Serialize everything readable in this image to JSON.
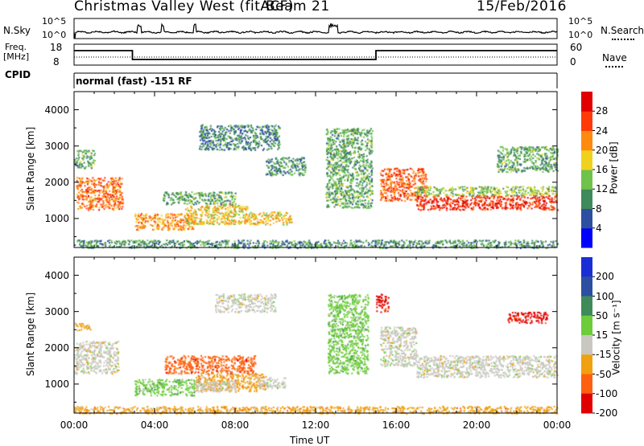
{
  "header": {
    "station": "Christmas Valley West (fitACF)",
    "beam": "Beam 21",
    "date": "15/Feb/2016"
  },
  "top_panels": {
    "noise": {
      "left_label": "N.Sky",
      "right_label": "N.Search",
      "left_ticks": [
        "10^5",
        "10^0"
      ],
      "right_ticks": [
        "10^5",
        "10^0"
      ]
    },
    "freq": {
      "left_label_1": "Freq.",
      "left_label_2": "[MHz]",
      "left_ticks": [
        "18",
        "8"
      ],
      "right_label": "Nave",
      "right_ticks": [
        "60",
        "0"
      ]
    },
    "cpid": {
      "label": "CPID",
      "value": "normal (fast) -151 RF"
    }
  },
  "chart_data": [
    {
      "type": "heatmap",
      "name": "power",
      "ylabel": "Slant Range [km]",
      "yticks": [
        1000,
        2000,
        3000,
        4000
      ],
      "ylim": [
        200,
        4500
      ],
      "xlabel": "Time UT",
      "xticks": [
        "00:00",
        "04:00",
        "08:00",
        "12:00",
        "16:00",
        "20:00",
        "00:00"
      ],
      "xlim_hours": [
        0,
        24
      ],
      "colorbar": {
        "label": "Power [dB]",
        "ticks": [
          "4",
          "8",
          "12",
          "16",
          "20",
          "24",
          "28"
        ],
        "colors": [
          "#0000ff",
          "#2d4ea1",
          "#3f8a5a",
          "#6fc24a",
          "#f0d21e",
          "#ff8a10",
          "#ff3a0a",
          "#e00000"
        ]
      },
      "regions": [
        {
          "t0": 0.1,
          "t1": 2.4,
          "r0": 1250,
          "r1": 2150,
          "level": 0.78
        },
        {
          "t0": 0.0,
          "t1": 1.0,
          "r0": 2400,
          "r1": 2900,
          "level": 0.35
        },
        {
          "t0": 3.0,
          "t1": 6.0,
          "r0": 700,
          "r1": 1150,
          "level": 0.7
        },
        {
          "t0": 5.5,
          "t1": 8.6,
          "r0": 850,
          "r1": 1400,
          "level": 0.6
        },
        {
          "t0": 8.5,
          "t1": 10.8,
          "r0": 850,
          "r1": 1200,
          "level": 0.6
        },
        {
          "t0": 4.4,
          "t1": 8.0,
          "r0": 1400,
          "r1": 1750,
          "level": 0.35
        },
        {
          "t0": 6.2,
          "t1": 10.2,
          "r0": 2900,
          "r1": 3600,
          "level": 0.25
        },
        {
          "t0": 9.5,
          "t1": 11.5,
          "r0": 2200,
          "r1": 2700,
          "level": 0.3
        },
        {
          "t0": 12.5,
          "t1": 14.8,
          "r0": 1300,
          "r1": 3500,
          "level": 0.35
        },
        {
          "t0": 15.2,
          "t1": 17.5,
          "r0": 1500,
          "r1": 2400,
          "level": 0.8
        },
        {
          "t0": 17.0,
          "t1": 24.0,
          "r0": 1250,
          "r1": 1650,
          "level": 0.92
        },
        {
          "t0": 17.0,
          "t1": 24.0,
          "r0": 1650,
          "r1": 1900,
          "level": 0.45
        },
        {
          "t0": 21.0,
          "t1": 24.0,
          "r0": 2300,
          "r1": 3000,
          "level": 0.35
        },
        {
          "t0": 0.0,
          "t1": 24.0,
          "r0": 200,
          "r1": 420,
          "level": 0.3
        }
      ]
    },
    {
      "type": "heatmap",
      "name": "velocity",
      "ylabel": "Slant Range [km]",
      "yticks": [
        1000,
        2000,
        3000,
        4000
      ],
      "ylim": [
        200,
        4500
      ],
      "xlabel": "Time UT",
      "xticks": [
        "00:00",
        "04:00",
        "08:00",
        "12:00",
        "16:00",
        "20:00",
        "00:00"
      ],
      "xlim_hours": [
        0,
        24
      ],
      "colorbar": {
        "label": "Velocity [m s⁻¹]",
        "ticks": [
          "200",
          "100",
          "50",
          "15",
          "-15",
          "-50",
          "-100",
          "-200"
        ],
        "colors": [
          "#1a2ed6",
          "#2d4ea1",
          "#3f8a5a",
          "#6ccc3a",
          "#c8c8c0",
          "#f0a010",
          "#ff6010",
          "#e00000"
        ]
      },
      "regions": [
        {
          "t0": 0.0,
          "t1": 2.2,
          "r0": 1300,
          "r1": 2200,
          "color": 4
        },
        {
          "t0": 0.0,
          "t1": 0.8,
          "r0": 2500,
          "r1": 2700,
          "color": 5
        },
        {
          "t0": 3.0,
          "t1": 6.0,
          "r0": 700,
          "r1": 1150,
          "color": 3
        },
        {
          "t0": 6.0,
          "t1": 9.5,
          "r0": 800,
          "r1": 1300,
          "color": 5
        },
        {
          "t0": 6.0,
          "t1": 8.0,
          "r0": 800,
          "r1": 1100,
          "color": 4
        },
        {
          "t0": 4.5,
          "t1": 9.0,
          "r0": 1300,
          "r1": 1800,
          "color": 6
        },
        {
          "t0": 9.0,
          "t1": 10.5,
          "r0": 900,
          "r1": 1200,
          "color": 4
        },
        {
          "t0": 7.0,
          "t1": 10.0,
          "r0": 3000,
          "r1": 3500,
          "color": 4
        },
        {
          "t0": 12.6,
          "t1": 14.6,
          "r0": 1300,
          "r1": 3500,
          "color": 3
        },
        {
          "t0": 15.2,
          "t1": 17.0,
          "r0": 1500,
          "r1": 2600,
          "color": 4
        },
        {
          "t0": 17.0,
          "t1": 24.0,
          "r0": 1200,
          "r1": 1800,
          "color": 4
        },
        {
          "t0": 15.0,
          "t1": 15.6,
          "r0": 3000,
          "r1": 3500,
          "color": 7
        },
        {
          "t0": 21.5,
          "t1": 23.5,
          "r0": 2700,
          "r1": 3000,
          "color": 7
        },
        {
          "t0": 0.0,
          "t1": 24.0,
          "r0": 200,
          "r1": 400,
          "color": 5
        }
      ]
    }
  ]
}
